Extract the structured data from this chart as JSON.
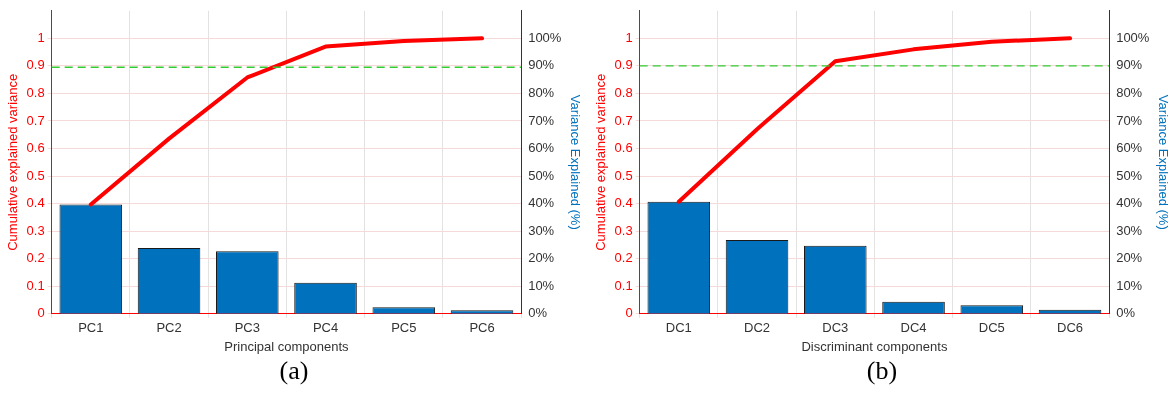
{
  "chart_data": [
    {
      "type": "bar",
      "xlabel": "Principal components",
      "ylabel": "Cumulative explained variance",
      "y2label": "Variance Explained (%)",
      "categories": [
        "PC1",
        "PC2",
        "PC3",
        "PC4",
        "PC5",
        "PC6"
      ],
      "series": [
        {
          "axis": "y2",
          "color": "#0072bd",
          "values": [
            39.7,
            23.9,
            22.7,
            11.3,
            2.4,
            1.3
          ]
        },
        {
          "type": "line",
          "axis": "y",
          "color": "#ff0000",
          "values": [
            0.397,
            0.636,
            0.858,
            0.97,
            0.99,
            1.0
          ]
        }
      ],
      "ylim": [
        0,
        1.1
      ],
      "yticks": [
        0,
        0.1,
        0.2,
        0.3,
        0.4,
        0.5,
        0.6,
        0.7,
        0.8,
        0.9,
        1
      ],
      "y2lim": [
        0,
        110
      ],
      "y2ticks": [
        {
          "value": 0,
          "label": "0%"
        },
        {
          "value": 10,
          "label": "10%"
        },
        {
          "value": 20,
          "label": "20%"
        },
        {
          "value": 30,
          "label": "30%"
        },
        {
          "value": 40,
          "label": "40%"
        },
        {
          "value": 50,
          "label": "50%"
        },
        {
          "value": 60,
          "label": "60%"
        },
        {
          "value": 70,
          "label": "70%"
        },
        {
          "value": 80,
          "label": "80%"
        },
        {
          "value": 90,
          "label": "90%"
        },
        {
          "value": 100,
          "label": "100%"
        }
      ],
      "ref_lines": [
        {
          "axis": "y",
          "value": 0.895,
          "color": "#33cc33",
          "line_style": "dashed"
        }
      ],
      "grid": true,
      "annotations": [
        "(a)"
      ]
    },
    {
      "type": "bar",
      "xlabel": "Discriminant components",
      "ylabel": "Cumulative explained variance",
      "y2label": "Variance Explained (%)",
      "categories": [
        "DC1",
        "DC2",
        "DC3",
        "DC4",
        "DC5",
        "DC6"
      ],
      "series": [
        {
          "axis": "y2",
          "color": "#0072bd",
          "values": [
            40.7,
            26.8,
            24.7,
            4.4,
            3.1,
            1.5
          ]
        },
        {
          "type": "line",
          "axis": "y",
          "color": "#ff0000",
          "values": [
            0.407,
            0.67,
            0.917,
            0.96,
            0.988,
            1.0
          ]
        }
      ],
      "ylim": [
        0,
        1.1
      ],
      "yticks": [
        0,
        0.1,
        0.2,
        0.3,
        0.4,
        0.5,
        0.6,
        0.7,
        0.8,
        0.9,
        1
      ],
      "y2lim": [
        0,
        110
      ],
      "y2ticks": [
        {
          "value": 0,
          "label": "0%"
        },
        {
          "value": 10,
          "label": "10%"
        },
        {
          "value": 20,
          "label": "20%"
        },
        {
          "value": 30,
          "label": "30%"
        },
        {
          "value": 40,
          "label": "40%"
        },
        {
          "value": 50,
          "label": "50%"
        },
        {
          "value": 60,
          "label": "60%"
        },
        {
          "value": 70,
          "label": "70%"
        },
        {
          "value": 80,
          "label": "80%"
        },
        {
          "value": 90,
          "label": "90%"
        },
        {
          "value": 100,
          "label": "100%"
        }
      ],
      "ref_lines": [
        {
          "axis": "y",
          "value": 0.9,
          "color": "#33cc33",
          "line_style": "dashed"
        }
      ],
      "grid": true,
      "annotations": [
        "(b)"
      ]
    }
  ]
}
